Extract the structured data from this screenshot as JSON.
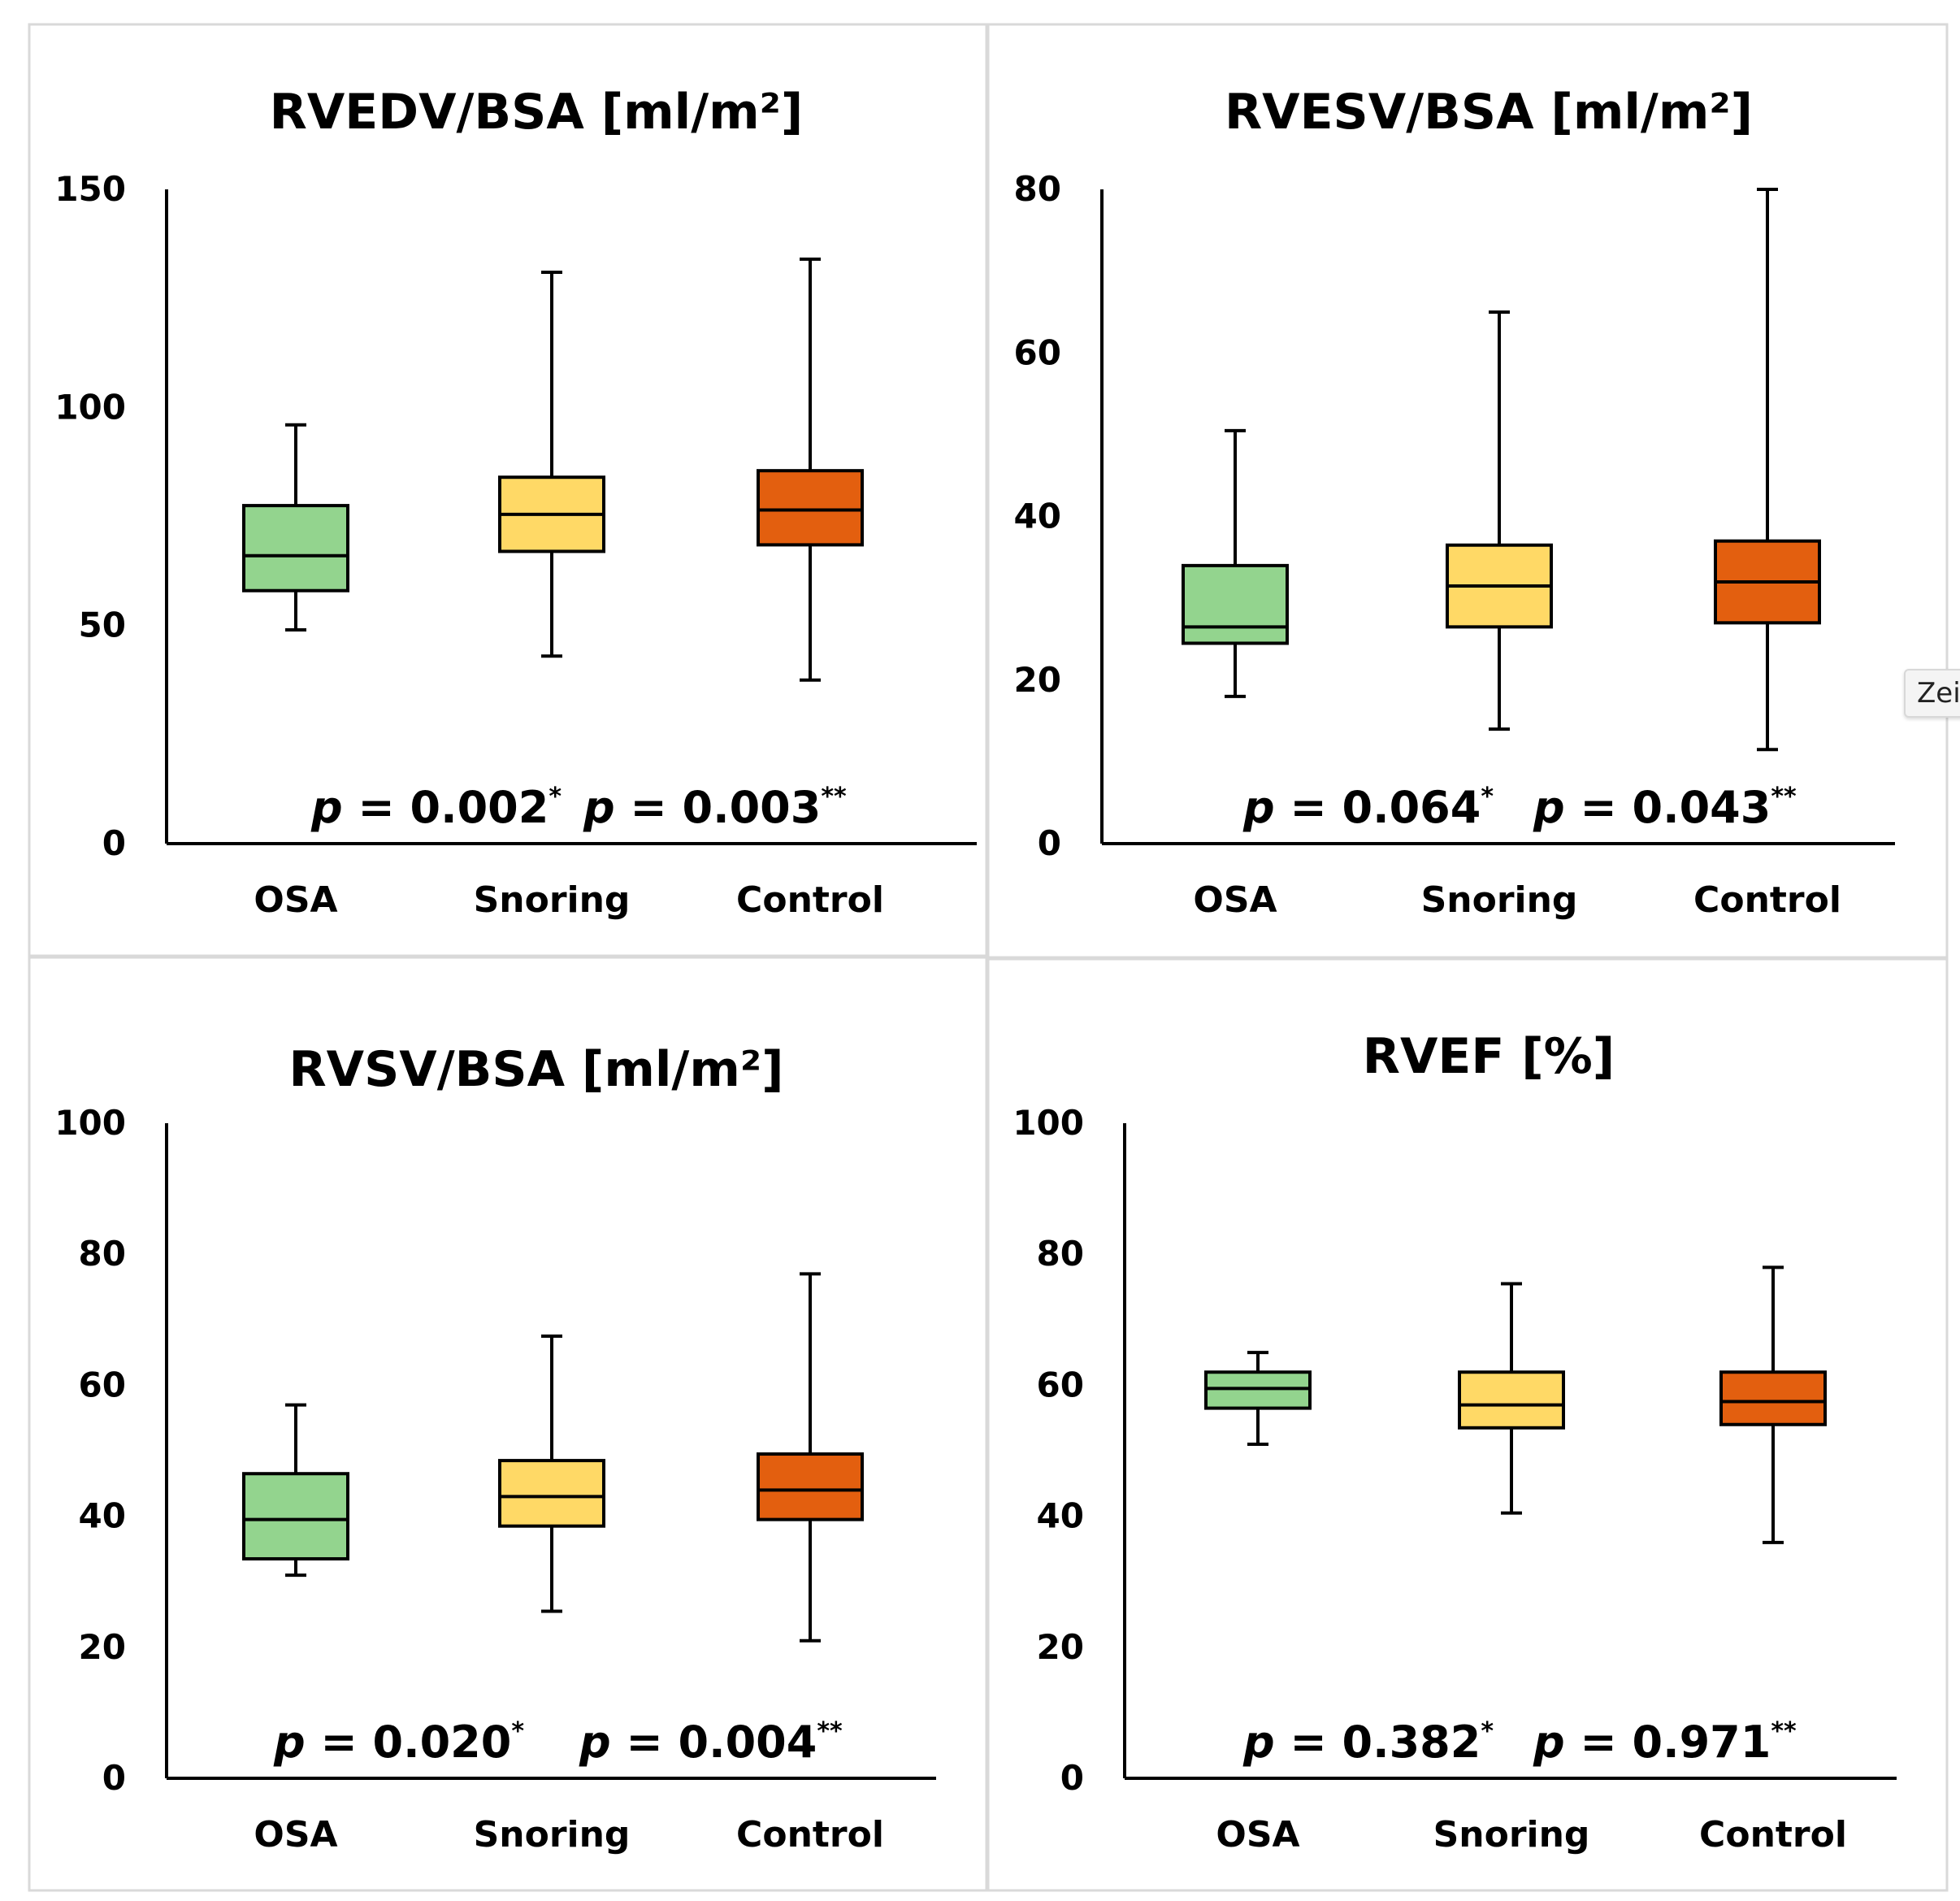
{
  "chart_data": [
    {
      "type": "box",
      "title": "RVEDV/BSA [ml/m²]",
      "ylim": [
        0,
        150
      ],
      "yticks": [
        0,
        50,
        100,
        150
      ],
      "categories": [
        "OSA",
        "Snoring",
        "Control"
      ],
      "boxes": [
        {
          "name": "OSA",
          "min": 49,
          "q1": 58,
          "median": 66,
          "q3": 77.5,
          "max": 96
        },
        {
          "name": "Snoring",
          "min": 43,
          "q1": 67,
          "median": 75.5,
          "q3": 84,
          "max": 131
        },
        {
          "name": "Control",
          "min": 37.5,
          "q1": 68.5,
          "median": 76.5,
          "q3": 85.5,
          "max": 134
        }
      ],
      "pvalues": [
        {
          "label": "p",
          "text": " = 0.002",
          "mark": "*"
        },
        {
          "label": "p",
          "text": " = 0.003",
          "mark": "**"
        }
      ]
    },
    {
      "type": "box",
      "title": "RVESV/BSA [ml/m²]",
      "ylim": [
        0,
        80
      ],
      "yticks": [
        0,
        20,
        40,
        60,
        80
      ],
      "categories": [
        "OSA",
        "Snoring",
        "Control"
      ],
      "boxes": [
        {
          "name": "OSA",
          "min": 18,
          "q1": 24.5,
          "median": 26.5,
          "q3": 34,
          "max": 50.5
        },
        {
          "name": "Snoring",
          "min": 14,
          "q1": 26.5,
          "median": 31.5,
          "q3": 36.5,
          "max": 65
        },
        {
          "name": "Control",
          "min": 11.5,
          "q1": 27,
          "median": 32,
          "q3": 37,
          "max": 80
        }
      ],
      "pvalues": [
        {
          "label": "p",
          "text": " = 0.064",
          "mark": "*"
        },
        {
          "label": "p",
          "text": " = 0.043",
          "mark": "**"
        }
      ]
    },
    {
      "type": "box",
      "title": "RVSV/BSA [ml/m²]",
      "ylim": [
        0,
        100
      ],
      "yticks": [
        0,
        20,
        40,
        60,
        80,
        100
      ],
      "categories": [
        "OSA",
        "Snoring",
        "Control"
      ],
      "boxes": [
        {
          "name": "OSA",
          "min": 31,
          "q1": 33.5,
          "median": 39.5,
          "q3": 46.5,
          "max": 57
        },
        {
          "name": "Snoring",
          "min": 25.5,
          "q1": 38.5,
          "median": 43,
          "q3": 48.5,
          "max": 67.5
        },
        {
          "name": "Control",
          "min": 21,
          "q1": 39.5,
          "median": 44,
          "q3": 49.5,
          "max": 77
        }
      ],
      "pvalues": [
        {
          "label": "p",
          "text": " = 0.020",
          "mark": "*"
        },
        {
          "label": "p",
          "text": " = 0.004",
          "mark": "**"
        }
      ]
    },
    {
      "type": "box",
      "title": "RVEF [%]",
      "ylim": [
        0,
        100
      ],
      "yticks": [
        0,
        20,
        40,
        60,
        80,
        100
      ],
      "categories": [
        "OSA",
        "Snoring",
        "Control"
      ],
      "boxes": [
        {
          "name": "OSA",
          "min": 51,
          "q1": 56.5,
          "median": 59.5,
          "q3": 62,
          "max": 65
        },
        {
          "name": "Snoring",
          "min": 40.5,
          "q1": 53.5,
          "median": 57,
          "q3": 62,
          "max": 75.5
        },
        {
          "name": "Control",
          "min": 36,
          "q1": 54,
          "median": 57.5,
          "q3": 62,
          "max": 78
        }
      ],
      "pvalues": [
        {
          "label": "p",
          "text": " = 0.382",
          "mark": "*"
        },
        {
          "label": "p",
          "text": " = 0.971",
          "mark": "**"
        }
      ]
    }
  ],
  "colors": {
    "OSA": "#93d48e",
    "Snoring": "#ffd966",
    "Control": "#e35f0f"
  },
  "tooltip": {
    "label": "Zei"
  }
}
